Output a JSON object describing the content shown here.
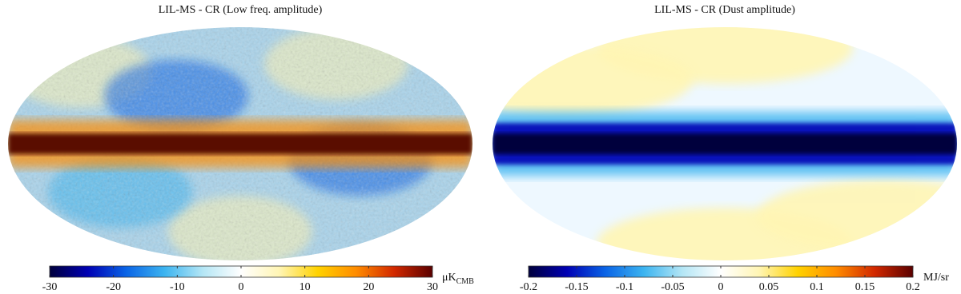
{
  "chart_data": [
    {
      "type": "mollweide-map",
      "title": "LIL-MS - CR (Low freq. amplitude)",
      "colorbar": {
        "lim": [
          -30,
          30
        ],
        "ticks": [
          -30,
          -20,
          -10,
          0,
          10,
          20,
          30
        ],
        "unit": "μK",
        "unit_subscript": "CMB"
      },
      "colormap": [
        "#00003c",
        "#0000b4",
        "#0a64e6",
        "#3cb4f0",
        "#b4e6f5",
        "#ffffff",
        "#fff5b4",
        "#ffd200",
        "#ff8c00",
        "#d22800",
        "#5a0000"
      ],
      "band_color": "#5a0a00",
      "base_color": "#a9d4ec"
    },
    {
      "type": "mollweide-map",
      "title": "LIL-MS - CR (Dust amplitude)",
      "colorbar": {
        "lim": [
          -0.2,
          0.2
        ],
        "ticks": [
          -0.2,
          -0.15,
          -0.1,
          -0.05,
          0,
          0.05,
          0.1,
          0.15,
          0.2
        ],
        "unit": "MJ/sr"
      },
      "colormap": [
        "#00003c",
        "#0000b4",
        "#0a64e6",
        "#3cb4f0",
        "#b4e6f5",
        "#ffffff",
        "#fff5b4",
        "#ffd200",
        "#ff8c00",
        "#d22800",
        "#5a0000"
      ],
      "band_color": "#00003c",
      "base_color": "#eef8ff"
    }
  ]
}
